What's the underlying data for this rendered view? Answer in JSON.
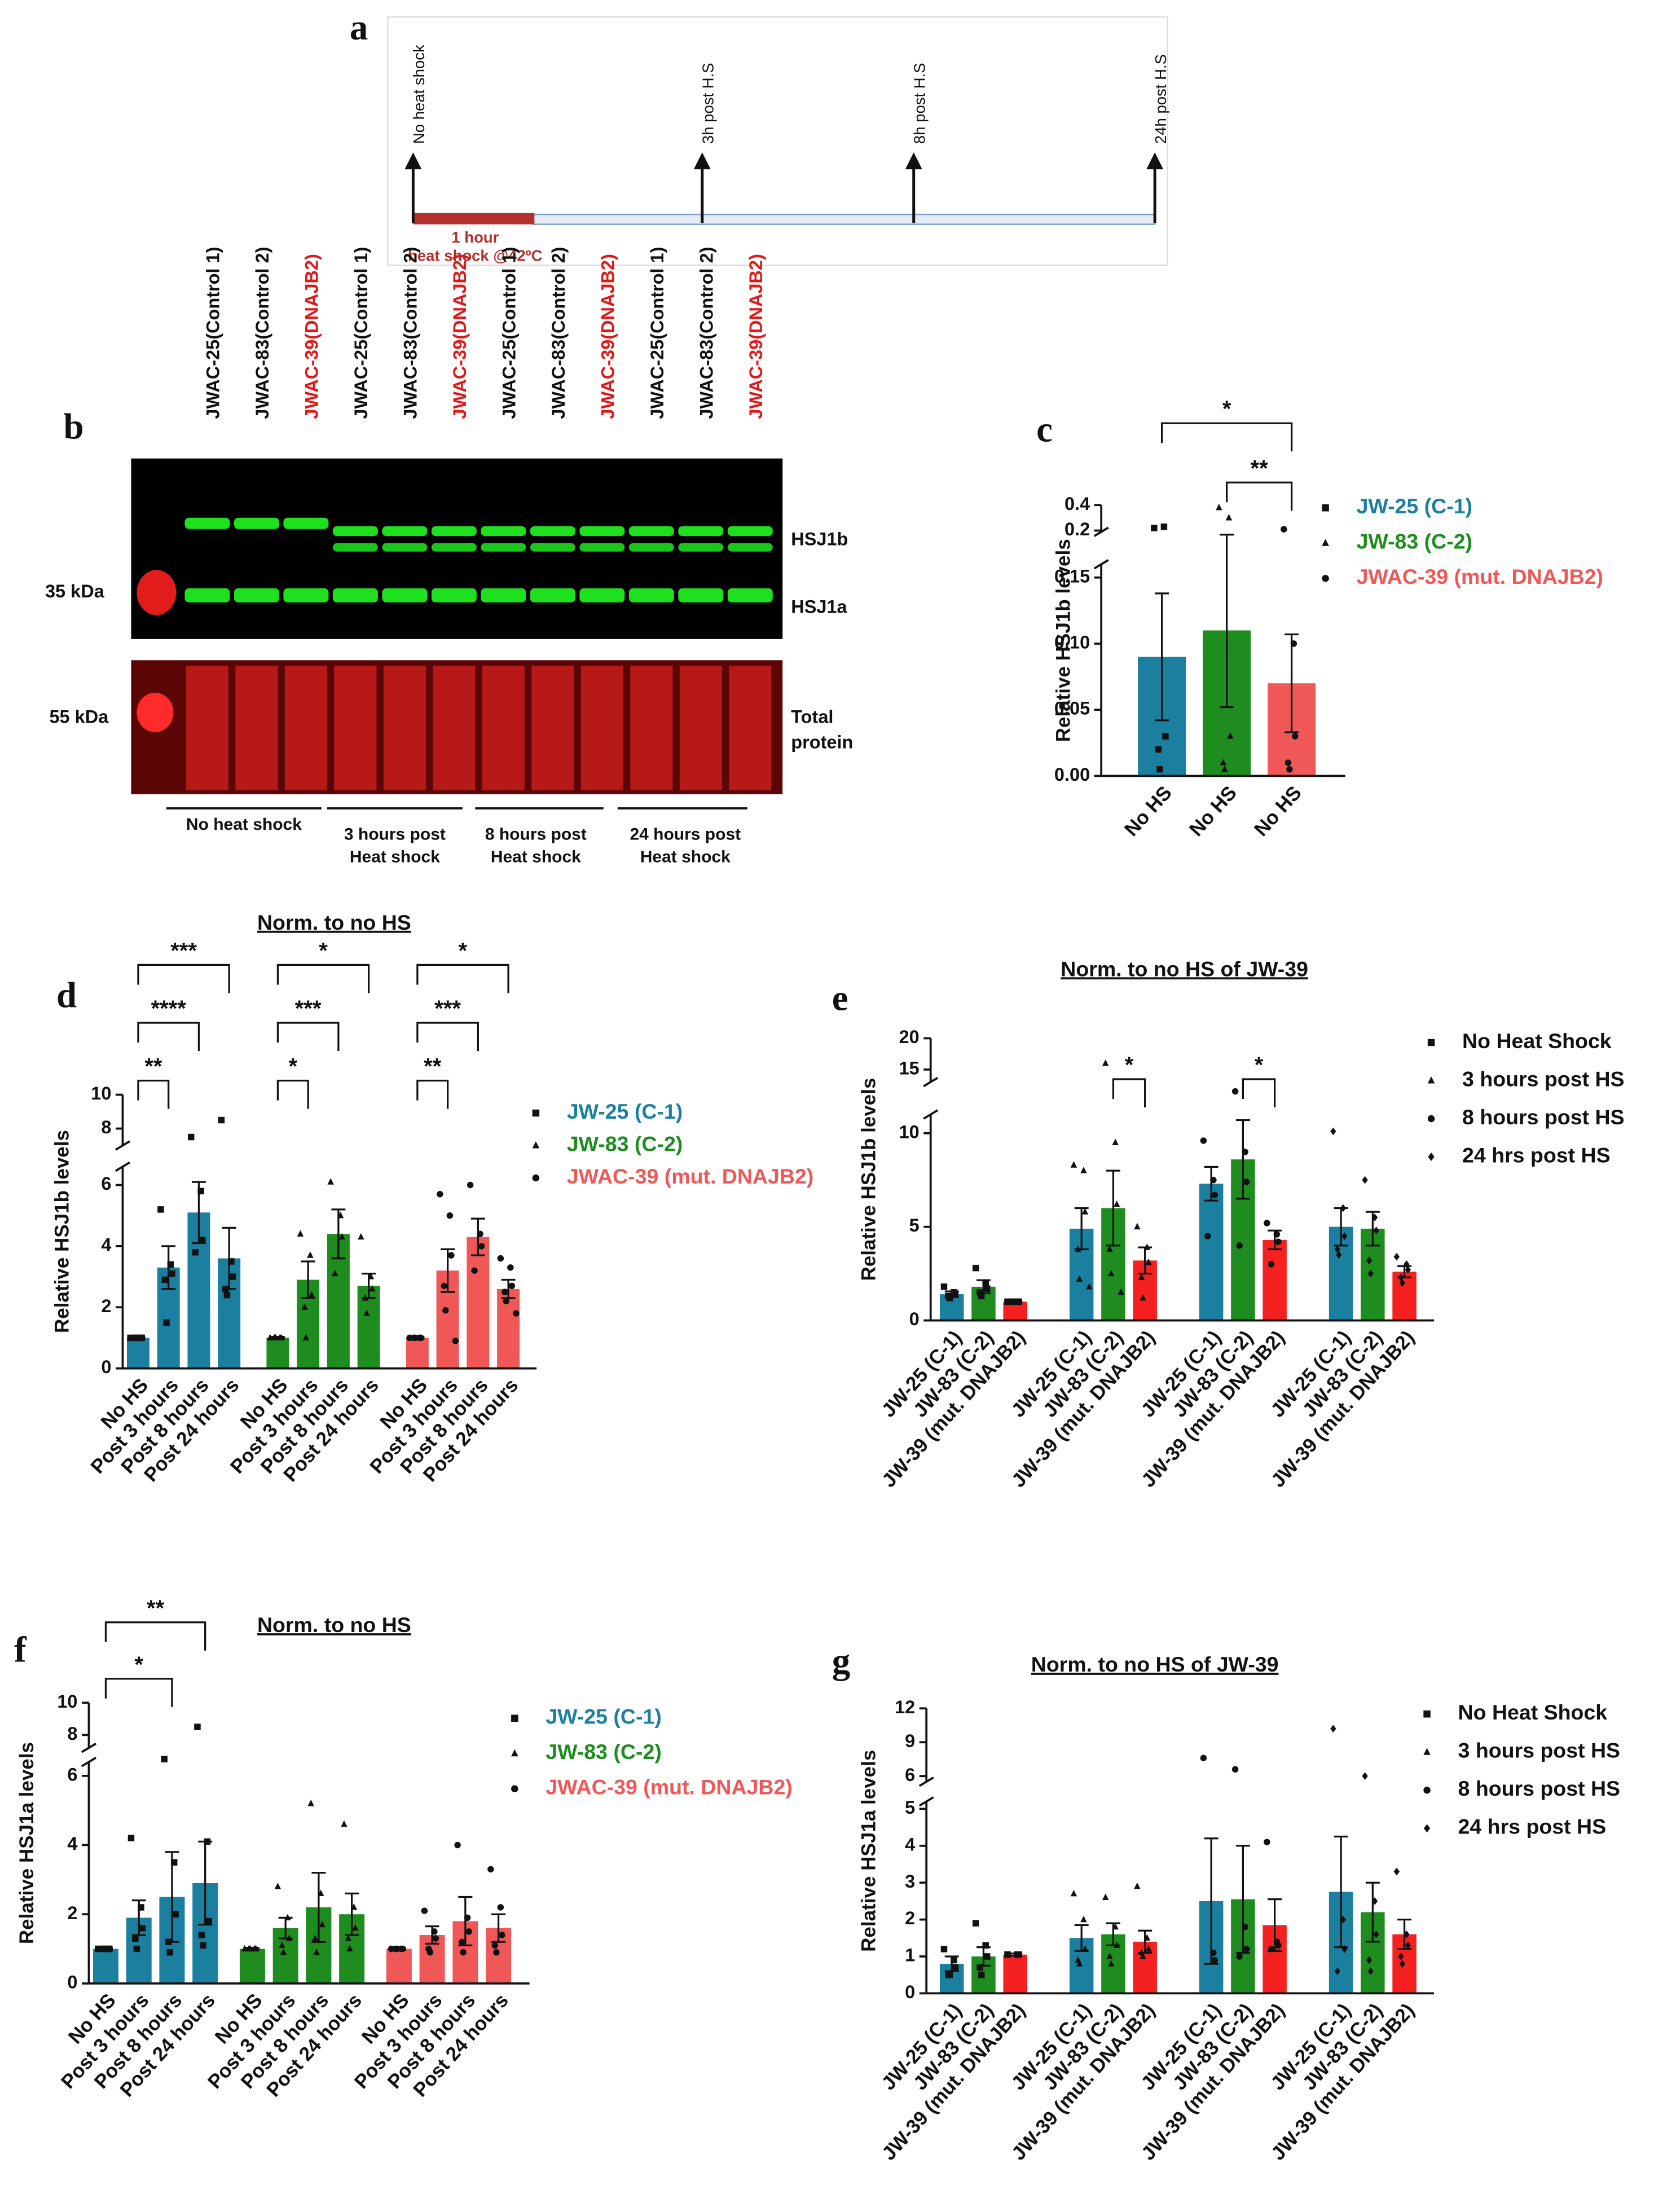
{
  "timeline": {
    "label": "a",
    "points": [
      "No heat shock",
      "3h post H.S",
      "8h post H.S",
      "24h post H.S"
    ],
    "heat_shock": [
      "1 hour",
      "heat shock @42ºC"
    ]
  },
  "blot": {
    "label": "b",
    "lanes": [
      "JWAC-25(Control 1)",
      "JWAC-83(Control 2)",
      "JWAC-39(DNAJB2)",
      "JWAC-25(Control 1)",
      "JWAC-83(Control 2)",
      "JWAC-39(DNAJB2)",
      "JWAC-25(Control 1)",
      "JWAC-83(Control 2)",
      "JWAC-39(DNAJB2)",
      "JWAC-25(Control 1)",
      "JWAC-83(Control 2)",
      "JWAC-39(DNAJB2)"
    ],
    "markers": [
      "35 kDa",
      "55 kDa"
    ],
    "bands": [
      "HSJ1b",
      "HSJ1a"
    ],
    "total": [
      "Total",
      "protein"
    ],
    "groups": [
      [
        "No heat shock"
      ],
      [
        "3 hours post",
        "Heat shock"
      ],
      [
        "8 hours post",
        "Heat shock"
      ],
      [
        "24 hours post",
        "Heat shock"
      ]
    ]
  },
  "chart_data": [
    {
      "type": "bar",
      "label": "c",
      "ylabel": "Relative HSJ1b levels",
      "legend_of": "series",
      "markers": [
        "square",
        "triangle",
        "circle"
      ],
      "categories": [
        "No HS"
      ],
      "ylim": [
        0,
        0.4
      ],
      "ybreak": [
        0.16,
        0.19
      ],
      "yticks": [
        {
          "value": 0,
          "label": "0.00"
        },
        {
          "value": 0.05,
          "label": "0.05"
        },
        {
          "value": 0.1,
          "label": "0.10"
        },
        {
          "value": 0.15,
          "label": "0.15"
        },
        0.2,
        0.4
      ],
      "series": [
        {
          "name": "JW-25 (C-1)",
          "color": "#1b80a0",
          "values": [
            0.09
          ],
          "errors": [
            0.048
          ],
          "points": [
            [
              0.22,
              0.23,
              0.03,
              0.02,
              0.005
            ]
          ]
        },
        {
          "name": "JW-83 (C-2)",
          "color": "#1e8c1e",
          "values": [
            0.11
          ],
          "errors": [
            0.058
          ],
          "points": [
            [
              0.38,
              0.3,
              0.03,
              0.01,
              0.005
            ]
          ]
        },
        {
          "name": "JWAC-39 (mut. DNAJB2)",
          "color": "#f05858",
          "values": [
            0.07
          ],
          "errors": [
            0.037
          ],
          "points": [
            [
              0.21,
              0.1,
              0.03,
              0.01,
              0.005
            ]
          ]
        }
      ],
      "significance": [
        {
          "label": "**",
          "from": 1,
          "to": 2
        },
        {
          "label": "*",
          "from": 0,
          "to": 2
        }
      ]
    },
    {
      "type": "bar",
      "label": "d",
      "title": "Norm. to no HS",
      "ylabel": "Relative HSJ1b levels",
      "legend_of": "series",
      "markers": [
        "square",
        "triangle",
        "circle"
      ],
      "categories": [
        "No HS",
        "Post 3 hours",
        "Post 8 hours",
        "Post 24 hours"
      ],
      "ylim": [
        0,
        10
      ],
      "ybreak": [
        6.6,
        7
      ],
      "yticks": [
        0,
        2,
        4,
        6,
        8,
        10
      ],
      "series": [
        {
          "name": "JW-25 (C-1)",
          "color": "#1b80a0",
          "values": [
            1,
            3.3,
            5.1,
            3.6
          ],
          "errors": [
            0.03,
            0.7,
            1.0,
            1.0
          ],
          "points": [
            [
              1,
              1,
              1,
              1,
              1
            ],
            [
              5.2,
              3.4,
              3.1,
              2.9,
              1.5
            ],
            [
              7.5,
              5.8,
              4.2,
              3.8
            ],
            [
              8.5,
              3.5,
              3.0,
              2.6,
              2.4
            ]
          ]
        },
        {
          "name": "JW-83 (C-2)",
          "color": "#1e8c1e",
          "values": [
            1,
            2.9,
            4.4,
            2.7
          ],
          "errors": [
            0.03,
            0.6,
            0.8,
            0.4
          ],
          "points": [
            [
              1,
              1,
              1,
              1,
              1
            ],
            [
              4.4,
              3.7,
              2.4,
              2.0,
              1.0
            ],
            [
              6.1,
              5.0,
              4.3,
              3.1
            ],
            [
              4.3,
              3.0,
              2.6,
              2.3,
              1.8
            ]
          ]
        },
        {
          "name": "JWAC-39 (mut. DNAJB2)",
          "color": "#f05858",
          "values": [
            1,
            3.2,
            4.3,
            2.6
          ],
          "errors": [
            0.03,
            0.7,
            0.6,
            0.3
          ],
          "points": [
            [
              1,
              1,
              1,
              1,
              1
            ],
            [
              5.7,
              5.0,
              3.7,
              2.7,
              1.9,
              0.9
            ],
            [
              6.0,
              4.4,
              4.0,
              3.2
            ],
            [
              3.6,
              3.3,
              2.7,
              2.5,
              2.2,
              1.8
            ]
          ]
        }
      ],
      "significance": [
        {
          "label": "**",
          "from": 0,
          "to": 1
        },
        {
          "label": "****",
          "from": 0,
          "to": 2
        },
        {
          "label": "***",
          "from": 0,
          "to": 3
        },
        {
          "label": "*",
          "from": 4,
          "to": 5
        },
        {
          "label": "***",
          "from": 4,
          "to": 6
        },
        {
          "label": "*",
          "from": 4,
          "to": 7
        },
        {
          "label": "**",
          "from": 8,
          "to": 9
        },
        {
          "label": "***",
          "from": 8,
          "to": 10
        },
        {
          "label": "*",
          "from": 8,
          "to": 11
        }
      ]
    },
    {
      "type": "bar",
      "label": "e",
      "title": "Norm. to no HS of JW-39",
      "ylabel": "Relative HSJ1b levels",
      "legend_of": "categories",
      "markers": [
        "square",
        "triangle",
        "circle",
        "diamond"
      ],
      "categories": [
        "No Heat Shock",
        "3 hours post HS",
        "8 hours post HS",
        "24 hrs post HS"
      ],
      "ylim": [
        0,
        20
      ],
      "ybreak": [
        11,
        13
      ],
      "yticks": [
        0,
        5,
        10,
        15,
        20
      ],
      "series": [
        {
          "name": "JW-25 (C-1)",
          "color": "#1b80a0",
          "values": [
            1.4,
            4.9,
            7.3,
            5.0
          ],
          "errors": [
            0.15,
            1.1,
            0.9,
            1.0
          ],
          "points": [
            [
              1.8,
              1.5,
              1.4,
              1.3,
              1.2
            ],
            [
              8.3,
              8.0,
              5.8,
              3.8,
              2.2,
              1.8
            ],
            [
              9.6,
              7.5,
              6.7,
              4.5
            ],
            [
              10.1,
              6.0,
              4.5,
              3.8,
              3.5
            ]
          ]
        },
        {
          "name": "JW-83 (C-2)",
          "color": "#1e8c1e",
          "values": [
            1.8,
            6.0,
            8.6,
            4.9
          ],
          "errors": [
            0.35,
            2.0,
            2.1,
            0.9
          ],
          "points": [
            [
              2.8,
              2.0,
              1.7,
              1.5,
              1.3
            ],
            [
              16,
              9.5,
              6.2,
              3.8,
              2.5,
              1.5
            ],
            [
              11.5,
              9.0,
              7.4,
              4.0
            ],
            [
              7.5,
              5.5,
              4.8,
              3.2,
              2.5
            ]
          ]
        },
        {
          "name": "JW-39 (mut. DNAJB2)",
          "color": "#f52020",
          "values": [
            1.0,
            3.2,
            4.3,
            2.6
          ],
          "errors": [
            0.05,
            0.7,
            0.5,
            0.3
          ],
          "points": [
            [
              1,
              1,
              1,
              1,
              1
            ],
            [
              5.0,
              3.9,
              3.1,
              2.3,
              1.2
            ],
            [
              5.2,
              4.6,
              4.2,
              3.0
            ],
            [
              3.4,
              3.0,
              2.7,
              2.3,
              2.0
            ]
          ]
        }
      ],
      "significance": [
        {
          "label": "*",
          "from": 4,
          "to": 5
        },
        {
          "label": "*",
          "from": 7,
          "to": 8
        }
      ]
    },
    {
      "type": "bar",
      "label": "f",
      "title": "Norm. to no HS",
      "ylabel": "Relative HSJ1a levels",
      "legend_of": "series",
      "markers": [
        "square",
        "triangle",
        "circle"
      ],
      "categories": [
        "No HS",
        "Post 3 hours",
        "Post 8 hours",
        "Post 24 hours"
      ],
      "ylim": [
        0,
        10
      ],
      "ybreak": [
        6.4,
        7.2
      ],
      "yticks": [
        0,
        2,
        4,
        6,
        8,
        10
      ],
      "series": [
        {
          "name": "JW-25 (C-1)",
          "color": "#1b80a0",
          "values": [
            1,
            1.9,
            2.5,
            2.9
          ],
          "errors": [
            0.03,
            0.5,
            1.3,
            1.2
          ],
          "points": [
            [
              1,
              1,
              1,
              1,
              1
            ],
            [
              4.2,
              2.2,
              1.6,
              1.3,
              1.0
            ],
            [
              6.5,
              3.5,
              2.0,
              1.2,
              0.9
            ],
            [
              8.5,
              4.1,
              1.8,
              1.4,
              1.1
            ]
          ]
        },
        {
          "name": "JW-83 (C-2)",
          "color": "#1e8c1e",
          "values": [
            1,
            1.6,
            2.2,
            2.0
          ],
          "errors": [
            0.03,
            0.3,
            1.0,
            0.6
          ],
          "points": [
            [
              1,
              1,
              1,
              1,
              1
            ],
            [
              2.8,
              1.9,
              1.3,
              1.1,
              0.9
            ],
            [
              5.2,
              2.6,
              1.7,
              1.3,
              0.9
            ],
            [
              4.6,
              2.2,
              1.6,
              1.3,
              1.0
            ]
          ]
        },
        {
          "name": "JWAC-39 (mut. DNAJB2)",
          "color": "#f05858",
          "values": [
            1,
            1.4,
            1.8,
            1.6
          ],
          "errors": [
            0.03,
            0.25,
            0.7,
            0.4
          ],
          "points": [
            [
              1,
              1,
              1,
              1,
              1
            ],
            [
              2.1,
              1.5,
              1.3,
              1.0,
              0.9
            ],
            [
              4.0,
              1.9,
              1.5,
              1.2,
              0.9
            ],
            [
              3.3,
              2.2,
              1.4,
              1.1,
              0.9
            ]
          ]
        }
      ],
      "significance": [
        {
          "label": "*",
          "from": 0,
          "to": 2
        },
        {
          "label": "**",
          "from": 0,
          "to": 3
        }
      ]
    },
    {
      "type": "bar",
      "label": "g",
      "title": "Norm. to no HS of JW-39",
      "ylabel": "Relative HSJ1a levels",
      "legend_of": "categories",
      "markers": [
        "square",
        "triangle",
        "circle",
        "diamond"
      ],
      "categories": [
        "No Heat Shock",
        "3 hours post HS",
        "8 hours post HS",
        "24 hrs post HS"
      ],
      "ylim": [
        0,
        12
      ],
      "ybreak": [
        5.2,
        5.5
      ],
      "yticks": [
        0,
        1,
        2,
        3,
        4,
        5,
        6,
        9,
        12
      ],
      "series": [
        {
          "name": "JW-25 (C-1)",
          "color": "#1b80a0",
          "values": [
            0.8,
            1.5,
            2.5,
            2.75
          ],
          "errors": [
            0.2,
            0.35,
            1.7,
            1.5
          ],
          "points": [
            [
              1.2,
              0.9,
              0.7,
              0.5,
              0.5
            ],
            [
              2.7,
              2.0,
              1.2,
              0.9,
              0.8
            ],
            [
              7.6,
              1.1,
              0.9
            ],
            [
              10.2,
              2.0,
              1.2,
              0.6
            ]
          ]
        },
        {
          "name": "JW-83 (C-2)",
          "color": "#1e8c1e",
          "values": [
            1.0,
            1.6,
            2.55,
            2.2
          ],
          "errors": [
            0.25,
            0.3,
            1.45,
            0.8
          ],
          "points": [
            [
              1.9,
              1.3,
              1.0,
              0.7,
              0.5
            ],
            [
              2.6,
              1.8,
              1.3,
              1.0,
              0.8
            ],
            [
              6.6,
              1.8,
              1.2,
              1.0
            ],
            [
              6.0,
              2.5,
              1.6,
              0.9,
              0.6
            ]
          ]
        },
        {
          "name": "JW-39 (mut. DNAJB2)",
          "color": "#f52020",
          "values": [
            1.05,
            1.4,
            1.85,
            1.6
          ],
          "errors": [
            0.03,
            0.3,
            0.7,
            0.4
          ],
          "points": [
            [
              1.05,
              1.05,
              1.05
            ],
            [
              2.9,
              1.5,
              1.2,
              1.1,
              1.0
            ],
            [
              4.1,
              1.4,
              1.3,
              1.2
            ],
            [
              3.3,
              1.6,
              1.3,
              1.0,
              0.8
            ]
          ]
        }
      ],
      "significance": []
    }
  ]
}
